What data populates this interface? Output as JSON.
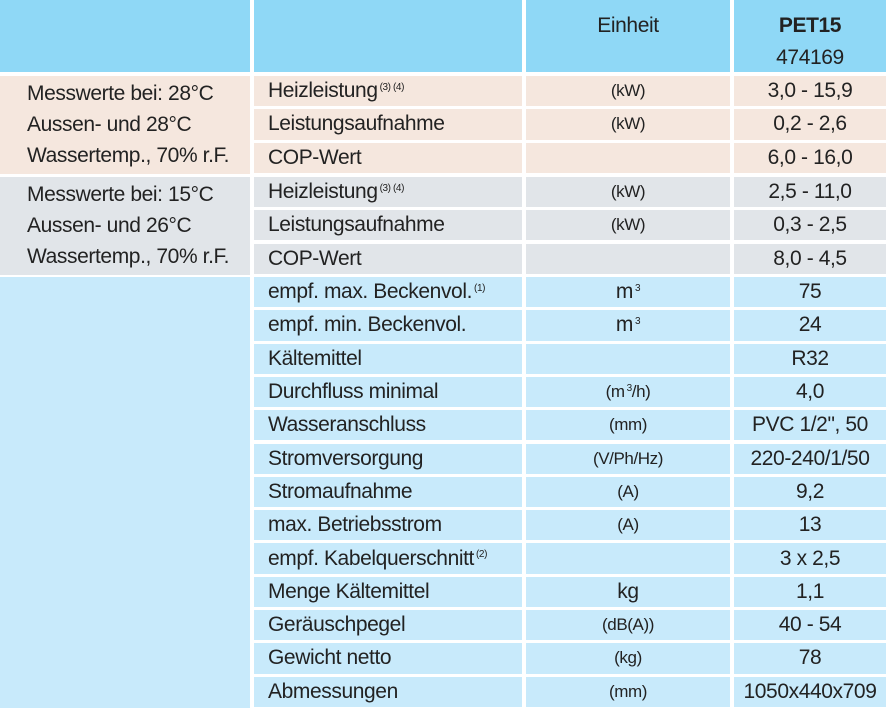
{
  "header": {
    "unit_label": "Einheit",
    "model": "PET15",
    "article": "474169"
  },
  "groups": [
    {
      "label_lines": [
        "Messwerte bei: 28°C",
        "Aussen- und 28°C",
        "Wassertemp., 70% r.F."
      ],
      "color": "#f5e7de",
      "rows": [
        {
          "name": "Heizleistung",
          "sup": "(3) (4)",
          "unit": "(kW)",
          "value": "3,0 - 15,9"
        },
        {
          "name": "Leistungsaufnahme",
          "sup": "",
          "unit": "(kW)",
          "value": "0,2 - 2,6"
        },
        {
          "name": "COP-Wert",
          "sup": "",
          "unit": "",
          "value": "6,0 - 16,0"
        }
      ]
    },
    {
      "label_lines": [
        "Messwerte bei: 15°C",
        "Aussen- und 26°C",
        "Wassertemp., 70% r.F."
      ],
      "color": "#e1e5e9",
      "rows": [
        {
          "name": "Heizleistung",
          "sup": "(3) (4)",
          "unit": "(kW)",
          "value": "2,5 - 11,0"
        },
        {
          "name": "Leistungsaufnahme",
          "sup": "",
          "unit": "(kW)",
          "value": "0,3 - 2,5"
        },
        {
          "name": "COP-Wert",
          "sup": "",
          "unit": "",
          "value": "8,0 - 4,5"
        }
      ]
    }
  ],
  "specs": [
    {
      "name": "empf. max. Beckenvol.",
      "sup": "(1)",
      "unit": "m",
      "unit_sup": "3",
      "unit_tail": "",
      "value": "75"
    },
    {
      "name": "empf. min. Beckenvol.",
      "sup": "",
      "unit": "m",
      "unit_sup": "3",
      "unit_tail": "",
      "value": "24"
    },
    {
      "name": "Kältemittel",
      "sup": "",
      "unit": "",
      "unit_sup": "",
      "unit_tail": "",
      "value": "R32"
    },
    {
      "name": "Durchfluss minimal",
      "sup": "",
      "unit": "(m",
      "unit_sup": "3",
      "unit_tail": "/h)",
      "value": "4,0"
    },
    {
      "name": "Wasseranschluss",
      "sup": "",
      "unit": "(mm)",
      "unit_sup": "",
      "unit_tail": "",
      "value": "PVC 1/2\", 50"
    },
    {
      "name": "Stromversorgung",
      "sup": "",
      "unit": "(V/Ph/Hz)",
      "unit_sup": "",
      "unit_tail": "",
      "value": "220-240/1/50"
    },
    {
      "name": "Stromaufnahme",
      "sup": "",
      "unit": "(A)",
      "unit_sup": "",
      "unit_tail": "",
      "value": "9,2"
    },
    {
      "name": "max. Betriebsstrom",
      "sup": "",
      "unit": "(A)",
      "unit_sup": "",
      "unit_tail": "",
      "value": "13"
    },
    {
      "name": "empf. Kabelquerschnitt",
      "sup": "(2)",
      "unit": "",
      "unit_sup": "",
      "unit_tail": "",
      "value": "3 x 2,5"
    },
    {
      "name": "Menge Kältemittel",
      "sup": "",
      "unit": "kg",
      "unit_sup": "",
      "unit_tail": "",
      "value": "1,1"
    },
    {
      "name": "Geräuschpegel",
      "sup": "",
      "unit": "(dB(A))",
      "unit_sup": "",
      "unit_tail": "",
      "value": "40 - 54"
    },
    {
      "name": "Gewicht netto",
      "sup": "",
      "unit": "(kg)",
      "unit_sup": "",
      "unit_tail": "",
      "value": "78"
    },
    {
      "name": "Abmessungen",
      "sup": "",
      "unit": "(mm)",
      "unit_sup": "",
      "unit_tail": "",
      "value": "1050x440x709"
    }
  ]
}
